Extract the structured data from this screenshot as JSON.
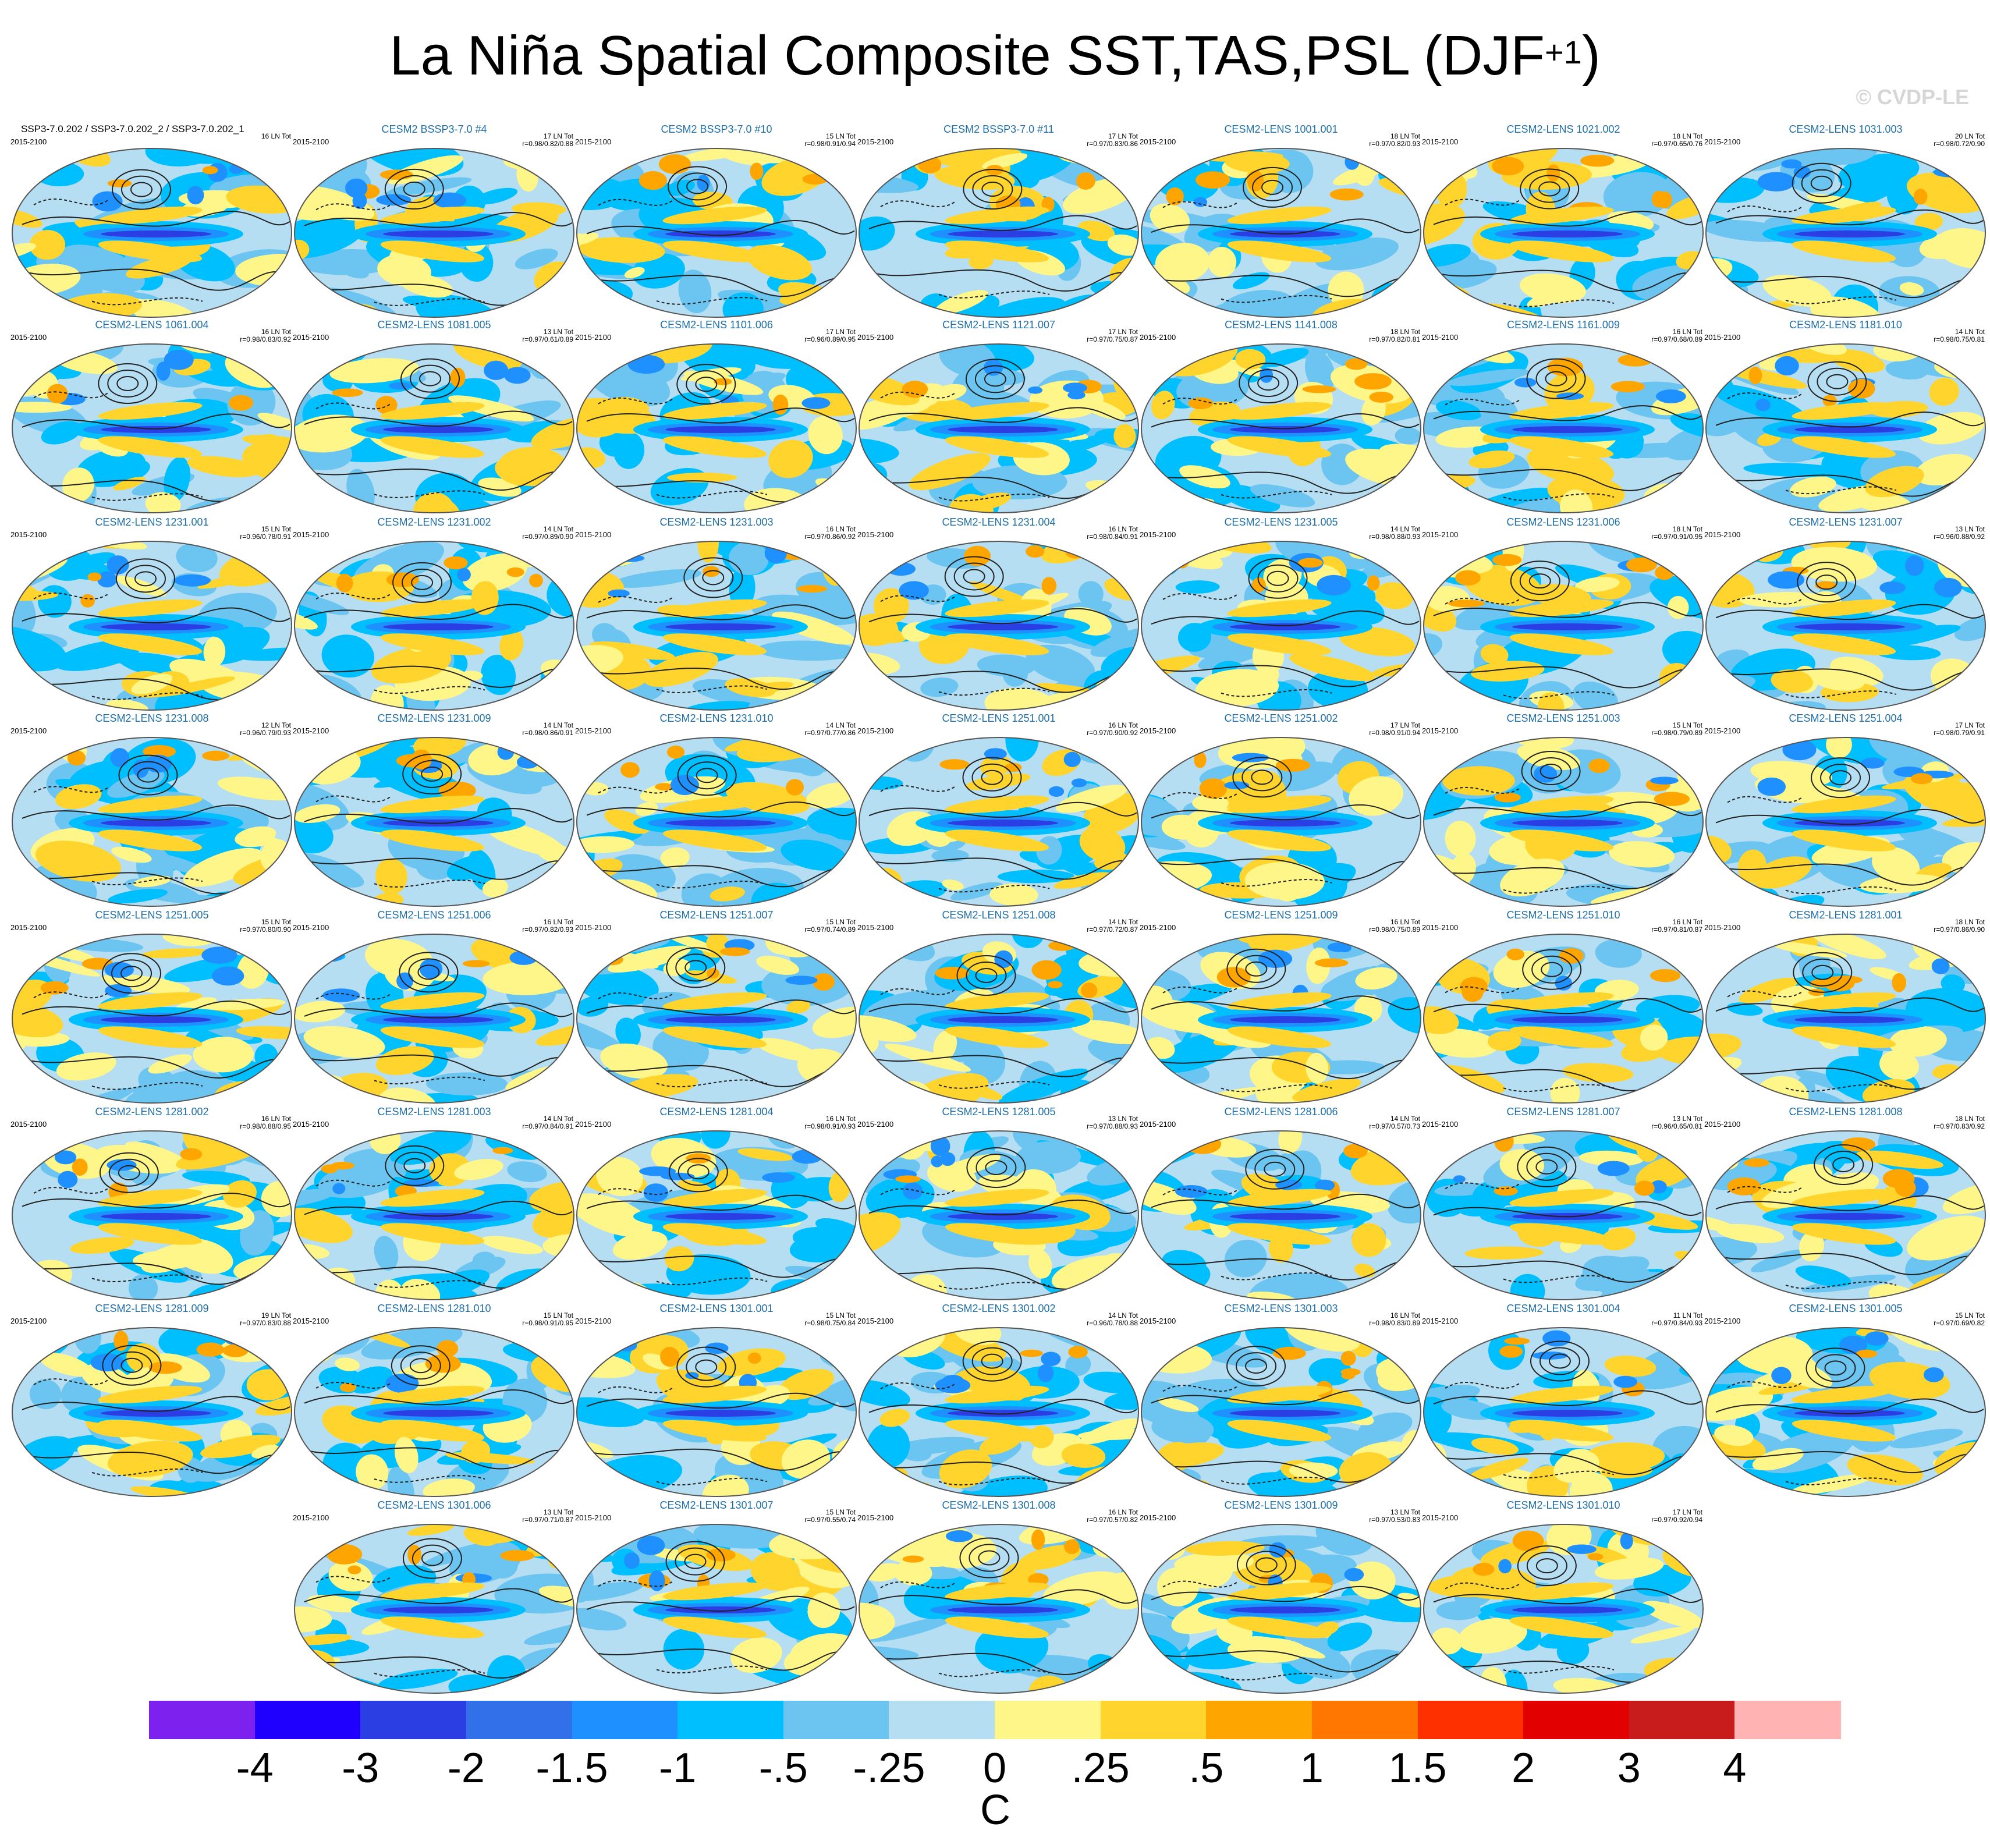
{
  "figure": {
    "title_main": "La Niña Spatial Composite SST,TAS,PSL (DJF",
    "title_sup": "+1",
    "title_end": ")",
    "watermark": "© CVDP-LE"
  },
  "chart_data": {
    "type": "heatmap",
    "title": "La Niña Spatial Composite SST,TAS,PSL (DJF+1)",
    "colorbar": {
      "label": "C",
      "ticks": [
        "-4",
        "-3",
        "-2",
        "-1.5",
        "-1",
        "-.5",
        "-.25",
        "0",
        ".25",
        ".5",
        "1",
        "1.5",
        "2",
        "3",
        "4"
      ],
      "levels": [
        -4,
        -3,
        -2,
        -1.5,
        -1,
        -0.5,
        -0.25,
        0,
        0.25,
        0.5,
        1,
        1.5,
        2,
        3,
        4
      ],
      "colors": [
        "#7d21ee",
        "#1f00ff",
        "#2a3ee4",
        "#3170e8",
        "#1e90ff",
        "#00bfff",
        "#6cc5f0",
        "#b6def2",
        "#fff68a",
        "#ffd42c",
        "#ffa500",
        "#ff7600",
        "#ff3000",
        "#e20000",
        "#c81b1b",
        "#ffb3b3"
      ]
    },
    "panels": [
      {
        "title": "SSP3-7.0.202 / SSP3-7.0.202_2 / SSP3-7.0.202_1",
        "period": "2015-2100",
        "ln": "16 LN Tot",
        "r": ""
      },
      {
        "title": "CESM2 BSSP3-7.0 #4",
        "period": "2015-2100",
        "ln": "17 LN Tot",
        "r": "r=0.98/0.82/0.88"
      },
      {
        "title": "CESM2 BSSP3-7.0 #10",
        "period": "2015-2100",
        "ln": "15 LN Tot",
        "r": "r=0.98/0.91/0.94"
      },
      {
        "title": "CESM2 BSSP3-7.0 #11",
        "period": "2015-2100",
        "ln": "17 LN Tot",
        "r": "r=0.97/0.83/0.86"
      },
      {
        "title": "CESM2-LENS 1001.001",
        "period": "2015-2100",
        "ln": "18 LN Tot",
        "r": "r=0.97/0.82/0.93"
      },
      {
        "title": "CESM2-LENS 1021.002",
        "period": "2015-2100",
        "ln": "18 LN Tot",
        "r": "r=0.97/0.65/0.76"
      },
      {
        "title": "CESM2-LENS 1031.003",
        "period": "2015-2100",
        "ln": "20 LN Tot",
        "r": "r=0.98/0.72/0.90"
      },
      {
        "title": "CESM2-LENS 1061.004",
        "period": "2015-2100",
        "ln": "16 LN Tot",
        "r": "r=0.98/0.83/0.92"
      },
      {
        "title": "CESM2-LENS 1081.005",
        "period": "2015-2100",
        "ln": "13 LN Tot",
        "r": "r=0.97/0.61/0.89"
      },
      {
        "title": "CESM2-LENS 1101.006",
        "period": "2015-2100",
        "ln": "17 LN Tot",
        "r": "r=0.96/0.89/0.95"
      },
      {
        "title": "CESM2-LENS 1121.007",
        "period": "2015-2100",
        "ln": "17 LN Tot",
        "r": "r=0.97/0.75/0.87"
      },
      {
        "title": "CESM2-LENS 1141.008",
        "period": "2015-2100",
        "ln": "18 LN Tot",
        "r": "r=0.97/0.82/0.81"
      },
      {
        "title": "CESM2-LENS 1161.009",
        "period": "2015-2100",
        "ln": "16 LN Tot",
        "r": "r=0.97/0.68/0.89"
      },
      {
        "title": "CESM2-LENS 1181.010",
        "period": "2015-2100",
        "ln": "14 LN Tot",
        "r": "r=0.98/0.75/0.81"
      },
      {
        "title": "CESM2-LENS 1231.001",
        "period": "2015-2100",
        "ln": "15 LN Tot",
        "r": "r=0.96/0.78/0.91"
      },
      {
        "title": "CESM2-LENS 1231.002",
        "period": "2015-2100",
        "ln": "14 LN Tot",
        "r": "r=0.97/0.89/0.90"
      },
      {
        "title": "CESM2-LENS 1231.003",
        "period": "2015-2100",
        "ln": "16 LN Tot",
        "r": "r=0.97/0.86/0.92"
      },
      {
        "title": "CESM2-LENS 1231.004",
        "period": "2015-2100",
        "ln": "16 LN Tot",
        "r": "r=0.98/0.84/0.91"
      },
      {
        "title": "CESM2-LENS 1231.005",
        "period": "2015-2100",
        "ln": "14 LN Tot",
        "r": "r=0.98/0.88/0.93"
      },
      {
        "title": "CESM2-LENS 1231.006",
        "period": "2015-2100",
        "ln": "18 LN Tot",
        "r": "r=0.97/0.91/0.95"
      },
      {
        "title": "CESM2-LENS 1231.007",
        "period": "2015-2100",
        "ln": "13 LN Tot",
        "r": "r=0.96/0.88/0.92"
      },
      {
        "title": "CESM2-LENS 1231.008",
        "period": "2015-2100",
        "ln": "12 LN Tot",
        "r": "r=0.96/0.79/0.93"
      },
      {
        "title": "CESM2-LENS 1231.009",
        "period": "2015-2100",
        "ln": "14 LN Tot",
        "r": "r=0.98/0.86/0.91"
      },
      {
        "title": "CESM2-LENS 1231.010",
        "period": "2015-2100",
        "ln": "14 LN Tot",
        "r": "r=0.97/0.77/0.86"
      },
      {
        "title": "CESM2-LENS 1251.001",
        "period": "2015-2100",
        "ln": "16 LN Tot",
        "r": "r=0.97/0.90/0.92"
      },
      {
        "title": "CESM2-LENS 1251.002",
        "period": "2015-2100",
        "ln": "17 LN Tot",
        "r": "r=0.98/0.91/0.94"
      },
      {
        "title": "CESM2-LENS 1251.003",
        "period": "2015-2100",
        "ln": "15 LN Tot",
        "r": "r=0.98/0.79/0.89"
      },
      {
        "title": "CESM2-LENS 1251.004",
        "period": "2015-2100",
        "ln": "17 LN Tot",
        "r": "r=0.98/0.79/0.91"
      },
      {
        "title": "CESM2-LENS 1251.005",
        "period": "2015-2100",
        "ln": "15 LN Tot",
        "r": "r=0.97/0.80/0.90"
      },
      {
        "title": "CESM2-LENS 1251.006",
        "period": "2015-2100",
        "ln": "16 LN Tot",
        "r": "r=0.97/0.82/0.93"
      },
      {
        "title": "CESM2-LENS 1251.007",
        "period": "2015-2100",
        "ln": "15 LN Tot",
        "r": "r=0.97/0.74/0.89"
      },
      {
        "title": "CESM2-LENS 1251.008",
        "period": "2015-2100",
        "ln": "14 LN Tot",
        "r": "r=0.97/0.72/0.87"
      },
      {
        "title": "CESM2-LENS 1251.009",
        "period": "2015-2100",
        "ln": "16 LN Tot",
        "r": "r=0.98/0.75/0.89"
      },
      {
        "title": "CESM2-LENS 1251.010",
        "period": "2015-2100",
        "ln": "16 LN Tot",
        "r": "r=0.97/0.81/0.87"
      },
      {
        "title": "CESM2-LENS 1281.001",
        "period": "2015-2100",
        "ln": "18 LN Tot",
        "r": "r=0.97/0.86/0.90"
      },
      {
        "title": "CESM2-LENS 1281.002",
        "period": "2015-2100",
        "ln": "16 LN Tot",
        "r": "r=0.98/0.88/0.95"
      },
      {
        "title": "CESM2-LENS 1281.003",
        "period": "2015-2100",
        "ln": "14 LN Tot",
        "r": "r=0.97/0.84/0.91"
      },
      {
        "title": "CESM2-LENS 1281.004",
        "period": "2015-2100",
        "ln": "16 LN Tot",
        "r": "r=0.98/0.91/0.93"
      },
      {
        "title": "CESM2-LENS 1281.005",
        "period": "2015-2100",
        "ln": "13 LN Tot",
        "r": "r=0.97/0.88/0.93"
      },
      {
        "title": "CESM2-LENS 1281.006",
        "period": "2015-2100",
        "ln": "14 LN Tot",
        "r": "r=0.97/0.57/0.73"
      },
      {
        "title": "CESM2-LENS 1281.007",
        "period": "2015-2100",
        "ln": "13 LN Tot",
        "r": "r=0.96/0.65/0.81"
      },
      {
        "title": "CESM2-LENS 1281.008",
        "period": "2015-2100",
        "ln": "18 LN Tot",
        "r": "r=0.97/0.83/0.92"
      },
      {
        "title": "CESM2-LENS 1281.009",
        "period": "2015-2100",
        "ln": "19 LN Tot",
        "r": "r=0.97/0.83/0.88"
      },
      {
        "title": "CESM2-LENS 1281.010",
        "period": "2015-2100",
        "ln": "15 LN Tot",
        "r": "r=0.98/0.91/0.95"
      },
      {
        "title": "CESM2-LENS 1301.001",
        "period": "2015-2100",
        "ln": "15 LN Tot",
        "r": "r=0.98/0.75/0.84"
      },
      {
        "title": "CESM2-LENS 1301.002",
        "period": "2015-2100",
        "ln": "14 LN Tot",
        "r": "r=0.96/0.78/0.88"
      },
      {
        "title": "CESM2-LENS 1301.003",
        "period": "2015-2100",
        "ln": "16 LN Tot",
        "r": "r=0.98/0.83/0.89"
      },
      {
        "title": "CESM2-LENS 1301.004",
        "period": "2015-2100",
        "ln": "11 LN Tot",
        "r": "r=0.97/0.84/0.93"
      },
      {
        "title": "CESM2-LENS 1301.005",
        "period": "2015-2100",
        "ln": "15 LN Tot",
        "r": "r=0.97/0.69/0.82"
      },
      {
        "title": "CESM2-LENS 1301.006",
        "period": "2015-2100",
        "ln": "13 LN Tot",
        "r": "r=0.97/0.71/0.87"
      },
      {
        "title": "CESM2-LENS 1301.007",
        "period": "2015-2100",
        "ln": "15 LN Tot",
        "r": "r=0.97/0.55/0.74"
      },
      {
        "title": "CESM2-LENS 1301.008",
        "period": "2015-2100",
        "ln": "16 LN Tot",
        "r": "r=0.97/0.57/0.82"
      },
      {
        "title": "CESM2-LENS 1301.009",
        "period": "2015-2100",
        "ln": "13 LN Tot",
        "r": "r=0.97/0.53/0.83"
      },
      {
        "title": "CESM2-LENS 1301.010",
        "period": "2015-2100",
        "ln": "17 LN Tot",
        "r": "r=0.97/0.92/0.94"
      }
    ]
  }
}
